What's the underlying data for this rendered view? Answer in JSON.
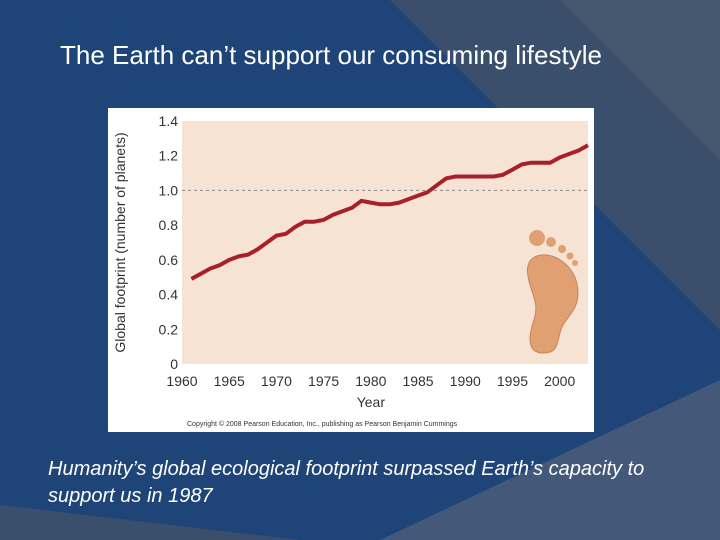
{
  "slide": {
    "title": "The Earth can’t support our consuming lifestyle",
    "caption": "Humanity’s global ecological footprint surpassed Earth’s capacity to support us in 1987",
    "background_color": "#1f4478",
    "accent_color": "#3a4f6b"
  },
  "chart_data": {
    "type": "line",
    "xlabel": "Year",
    "ylabel": "Global footprint (number of planets)",
    "xlim": [
      1960,
      2003
    ],
    "ylim": [
      0,
      1.4
    ],
    "x_ticks": [
      1960,
      1965,
      1970,
      1975,
      1980,
      1985,
      1990,
      1995,
      2000
    ],
    "y_ticks": [
      "0",
      "0.2",
      "0.4",
      "0.6",
      "0.8",
      "1.0",
      "1.2",
      "1.4"
    ],
    "reference_line": 1.0,
    "grid": false,
    "line_color": "#a8202a",
    "series": [
      {
        "x": [
          1961,
          1962,
          1963,
          1964,
          1965,
          1966,
          1967,
          1968,
          1969,
          1970,
          1971,
          1972,
          1973,
          1974,
          1975,
          1976,
          1977,
          1978,
          1979,
          1980,
          1981,
          1982,
          1983,
          1984,
          1985,
          1986,
          1987,
          1988,
          1989,
          1990,
          1991,
          1992,
          1993,
          1994,
          1995,
          1996,
          1997,
          1998,
          1999,
          2000,
          2001,
          2002,
          2003
        ],
        "y": [
          0.49,
          0.52,
          0.55,
          0.57,
          0.6,
          0.62,
          0.63,
          0.66,
          0.7,
          0.74,
          0.75,
          0.79,
          0.82,
          0.82,
          0.83,
          0.86,
          0.88,
          0.9,
          0.94,
          0.93,
          0.92,
          0.92,
          0.93,
          0.95,
          0.97,
          0.99,
          1.03,
          1.07,
          1.08,
          1.08,
          1.08,
          1.08,
          1.08,
          1.09,
          1.12,
          1.15,
          1.16,
          1.16,
          1.16,
          1.19,
          1.21,
          1.23,
          1.26
        ]
      }
    ],
    "copyright": "Copyright © 2008 Pearson Education, Inc., publishing as Pearson Benjamin Cummings"
  }
}
